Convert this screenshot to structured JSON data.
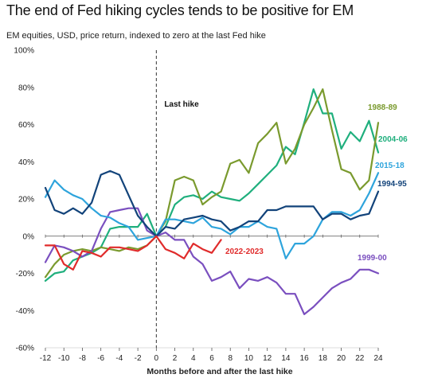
{
  "title": "The end of Fed hiking cycles tends to be positive for EM",
  "subtitle": "EM equities, USD, price return, indexed to zero at the last Fed hike",
  "chart_data": {
    "type": "line",
    "xlabel": "Months before and after the last hike",
    "ylabel": "",
    "xlim": [
      -12,
      24
    ],
    "ylim": [
      -60,
      100
    ],
    "x_ticks": [
      -12,
      -10,
      -8,
      -6,
      -4,
      -2,
      0,
      2,
      4,
      6,
      8,
      10,
      12,
      14,
      16,
      18,
      20,
      22,
      24
    ],
    "y_ticks": [
      {
        "value": 100,
        "label": "100%"
      },
      {
        "value": 80,
        "label": "80%"
      },
      {
        "value": 60,
        "label": "60%"
      },
      {
        "value": 40,
        "label": "40%"
      },
      {
        "value": 20,
        "label": "20%"
      },
      {
        "value": 0,
        "label": "0%"
      },
      {
        "value": -20,
        "label": "-20%"
      },
      {
        "value": -40,
        "label": "-40%"
      },
      {
        "value": -60,
        "label": "-60%"
      }
    ],
    "grid": false,
    "annotation": {
      "label": "Last hike",
      "x": 0
    },
    "series": [
      {
        "name": "1988-89",
        "color": "#7a9a2e",
        "x": [
          -12,
          -11,
          -10,
          -9,
          -8,
          -7,
          -6,
          -5,
          -4,
          -3,
          -2,
          -1,
          0,
          1,
          2,
          3,
          4,
          5,
          6,
          7,
          8,
          9,
          10,
          11,
          12,
          13,
          14,
          15,
          16,
          17,
          18,
          19,
          20,
          21,
          22,
          23,
          24
        ],
        "values": [
          -22,
          -15,
          -10,
          -8,
          -7,
          -8,
          -6,
          -7,
          -8,
          -6,
          -7,
          -5,
          0,
          8,
          30,
          32,
          30,
          17,
          21,
          24,
          39,
          41,
          34,
          50,
          55,
          61,
          39,
          47,
          60,
          69,
          79,
          57,
          36,
          34,
          25,
          30,
          61
        ]
      },
      {
        "name": "2004-06",
        "color": "#1faf7d",
        "x": [
          -12,
          -11,
          -10,
          -9,
          -8,
          -7,
          -6,
          -5,
          -4,
          -3,
          -2,
          -1,
          0,
          1,
          2,
          3,
          4,
          5,
          6,
          7,
          8,
          9,
          10,
          11,
          12,
          13,
          14,
          15,
          16,
          17,
          18,
          19,
          20,
          21,
          22,
          23,
          24
        ],
        "values": [
          -24,
          -20,
          -19,
          -13,
          -11,
          -9,
          -6,
          4,
          5,
          5,
          5,
          12,
          0,
          5,
          17,
          21,
          22,
          20,
          24,
          21,
          20,
          19,
          23,
          28,
          33,
          38,
          48,
          44,
          61,
          79,
          66,
          66,
          47,
          56,
          51,
          62,
          45
        ]
      },
      {
        "name": "2015-18",
        "color": "#2ea4dc",
        "x": [
          -12,
          -11,
          -10,
          -9,
          -8,
          -7,
          -6,
          -5,
          -4,
          -3,
          -2,
          -1,
          0,
          1,
          2,
          3,
          4,
          5,
          6,
          7,
          8,
          9,
          10,
          11,
          12,
          13,
          14,
          15,
          16,
          17,
          18,
          19,
          20,
          21,
          22,
          23,
          24
        ],
        "values": [
          21,
          30,
          25,
          22,
          20,
          15,
          11,
          10,
          7,
          5,
          -2,
          -1,
          0,
          9,
          9,
          8,
          7,
          10,
          5,
          4,
          1,
          5,
          5,
          8,
          5,
          4,
          -12,
          -4,
          -4,
          0,
          9,
          13,
          13,
          11,
          14,
          23,
          34
        ]
      },
      {
        "name": "1994-95",
        "color": "#12437a",
        "x": [
          -12,
          -11,
          -10,
          -9,
          -8,
          -7,
          -6,
          -5,
          -4,
          -3,
          -2,
          -1,
          0,
          1,
          2,
          3,
          4,
          5,
          6,
          7,
          8,
          9,
          10,
          11,
          12,
          13,
          14,
          15,
          16,
          17,
          18,
          19,
          20,
          21,
          22,
          23,
          24
        ],
        "values": [
          26,
          14,
          12,
          15,
          12,
          18,
          33,
          35,
          33,
          22,
          11,
          5,
          0,
          5,
          4,
          9,
          10,
          11,
          9,
          8,
          3,
          5,
          8,
          8,
          14,
          14,
          16,
          16,
          16,
          16,
          9,
          12,
          12,
          9,
          11,
          12,
          24
        ]
      },
      {
        "name": "1999-00",
        "color": "#7a4fbf",
        "x": [
          -12,
          -11,
          -10,
          -9,
          -8,
          -7,
          -6,
          -5,
          -4,
          -3,
          -2,
          -1,
          0,
          1,
          2,
          3,
          4,
          5,
          6,
          7,
          8,
          9,
          10,
          11,
          12,
          13,
          14,
          15,
          16,
          17,
          18,
          19,
          20,
          21,
          22,
          23,
          24
        ],
        "values": [
          -14,
          -5,
          -6,
          -8,
          -11,
          -8,
          4,
          13,
          14,
          15,
          15,
          3,
          0,
          2,
          -2,
          -2,
          -11,
          -15,
          -24,
          -22,
          -19,
          -28,
          -23,
          -24,
          -22,
          -25,
          -31,
          -31,
          -42,
          -38,
          -33,
          -28,
          -25,
          -23,
          -18,
          -18,
          -20
        ]
      },
      {
        "name": "2022-2023",
        "color": "#e02b2b",
        "x": [
          -12,
          -11,
          -10,
          -9,
          -8,
          -7,
          -6,
          -5,
          -4,
          -3,
          -2,
          -1,
          0,
          1,
          2,
          3,
          4,
          5,
          6,
          7
        ],
        "values": [
          -5,
          -5,
          -15,
          -18,
          -8,
          -9,
          -11,
          -6,
          -6,
          -7,
          -8,
          -5,
          0,
          -7,
          -9,
          -12,
          -4,
          -7,
          -9,
          -2
        ]
      }
    ]
  }
}
